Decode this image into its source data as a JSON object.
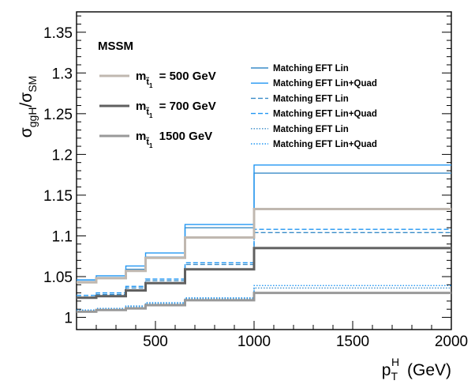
{
  "chart_data": {
    "type": "line",
    "step": true,
    "x_bin_edges": [
      100,
      200,
      350,
      450,
      650,
      1000,
      2000
    ],
    "xlim": [
      100,
      2000
    ],
    "ylim": [
      0.985,
      1.375
    ],
    "xticks": [
      500,
      1000,
      1500,
      2000
    ],
    "xtick_labels": [
      "500",
      "1000",
      "1500",
      "2000"
    ],
    "yticks": [
      1,
      1.05,
      1.1,
      1.15,
      1.2,
      1.25,
      1.3,
      1.35
    ],
    "ytick_labels": [
      "1",
      "1.05",
      "1.1",
      "1.15",
      "1.2",
      "1.25",
      "1.3",
      "1.35"
    ],
    "xlabel": "p_T^H (GeV)",
    "ylabel": "σ_ggH/σ_SM",
    "annotation": "MSSM",
    "mass_legend": [
      {
        "label_main": "m",
        "label_sub": "t̃",
        "label_subsub": "1",
        "value": "=  500 GeV",
        "color": "#c0b8b0"
      },
      {
        "label_main": "m",
        "label_sub": "t̃",
        "label_subsub": "1",
        "value": "=  700 GeV",
        "color": "#606060"
      },
      {
        "label_main": "m",
        "label_sub": "t̃",
        "label_subsub": "1",
        "value": "1500 GeV",
        "color": "#999999"
      }
    ],
    "style_legend": [
      {
        "label": "Matching EFT Lin",
        "color": "#3a8cc8",
        "dash": "solid"
      },
      {
        "label": "Matching EFT Lin+Quad",
        "color": "#2196f3",
        "dash": "solid"
      },
      {
        "label": "Matching EFT Lin",
        "color": "#3a8cc8",
        "dash": "dashed"
      },
      {
        "label": "Matching EFT Lin+Quad",
        "color": "#2196f3",
        "dash": "dashed"
      },
      {
        "label": "Matching EFT Lin",
        "color": "#3a8cc8",
        "dash": "dotted"
      },
      {
        "label": "Matching EFT Lin+Quad",
        "color": "#2196f3",
        "dash": "dotted"
      }
    ],
    "series": [
      {
        "name": "500 GeV EFT Lin",
        "color": "#3a8cc8",
        "dash": "solid",
        "width": 1.4,
        "values": [
          1.044,
          1.049,
          1.059,
          1.074,
          1.11,
          1.177
        ]
      },
      {
        "name": "500 GeV EFT Lin+Quad",
        "color": "#2196f3",
        "dash": "solid",
        "width": 1.4,
        "values": [
          1.046,
          1.051,
          1.063,
          1.079,
          1.114,
          1.187
        ]
      },
      {
        "name": "700 GeV EFT Lin",
        "color": "#3a8cc8",
        "dash": "dashed",
        "width": 1.4,
        "values": [
          1.025,
          1.028,
          1.036,
          1.045,
          1.065,
          1.104
        ]
      },
      {
        "name": "700 GeV EFT Lin+Quad",
        "color": "#2196f3",
        "dash": "dashed",
        "width": 1.4,
        "values": [
          1.027,
          1.03,
          1.038,
          1.047,
          1.067,
          1.108
        ]
      },
      {
        "name": "1500 GeV EFT Lin",
        "color": "#3a8cc8",
        "dash": "dotted",
        "width": 1.4,
        "values": [
          1.008,
          1.01,
          1.013,
          1.017,
          1.023,
          1.036
        ]
      },
      {
        "name": "1500 GeV EFT Lin+Quad",
        "color": "#2196f3",
        "dash": "dotted",
        "width": 1.4,
        "values": [
          1.009,
          1.011,
          1.014,
          1.018,
          1.024,
          1.039
        ]
      },
      {
        "name": "500 GeV",
        "color": "#c0b8b0",
        "dash": "solid",
        "width": 3,
        "values": [
          1.043,
          1.048,
          1.057,
          1.073,
          1.098,
          1.133
        ]
      },
      {
        "name": "700 GeV",
        "color": "#606060",
        "dash": "solid",
        "width": 3,
        "values": [
          1.024,
          1.026,
          1.033,
          1.042,
          1.059,
          1.085
        ]
      },
      {
        "name": "1500 GeV",
        "color": "#999999",
        "dash": "solid",
        "width": 3,
        "values": [
          1.007,
          1.009,
          1.011,
          1.015,
          1.021,
          1.03
        ]
      }
    ]
  }
}
